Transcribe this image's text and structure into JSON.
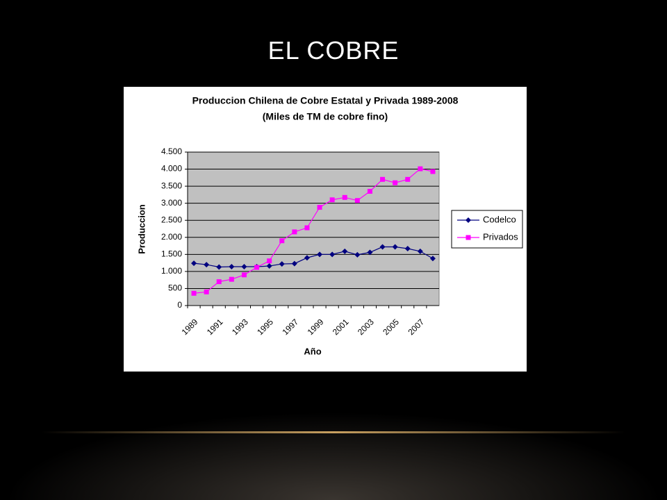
{
  "slide": {
    "title": "EL COBRE"
  },
  "chart_data": {
    "type": "line",
    "title": "Produccion Chilena de Cobre Estatal y Privada 1989-2008",
    "subtitle": "(Miles de TM de cobre fino)",
    "x_label": "Año",
    "y_label": "Produccion",
    "categories": [
      "1989",
      null,
      "1991",
      null,
      "1993",
      null,
      "1995",
      null,
      "1997",
      null,
      "1999",
      null,
      "2001",
      null,
      "2003",
      null,
      "2005",
      null,
      "2007",
      null
    ],
    "series": [
      {
        "name": "Codelco",
        "color": "#000080",
        "marker": "diamond",
        "values": [
          1240,
          1200,
          1130,
          1140,
          1140,
          1140,
          1160,
          1220,
          1230,
          1400,
          1500,
          1500,
          1590,
          1490,
          1560,
          1720,
          1720,
          1670,
          1590,
          1380
        ]
      },
      {
        "name": "Privados",
        "color": "#ff00ff",
        "marker": "square",
        "values": [
          360,
          400,
          700,
          770,
          900,
          1120,
          1310,
          1900,
          2160,
          2280,
          2880,
          3100,
          3170,
          3080,
          3350,
          3700,
          3600,
          3700,
          4010,
          3930
        ]
      }
    ],
    "ylim": [
      0,
      4500
    ],
    "yticks": [
      0,
      500,
      {
        "value": 1000,
        "label": "1.000"
      },
      {
        "value": 1500,
        "label": "1.500"
      },
      {
        "value": 2000,
        "label": "2.000"
      },
      {
        "value": 2500,
        "label": "2.500"
      },
      {
        "value": 3000,
        "label": "3.000"
      },
      {
        "value": 3500,
        "label": "3.500"
      },
      {
        "value": 4000,
        "label": "4.000"
      },
      {
        "value": 4500,
        "label": "4.500"
      }
    ],
    "grid": true,
    "legend": "right"
  }
}
